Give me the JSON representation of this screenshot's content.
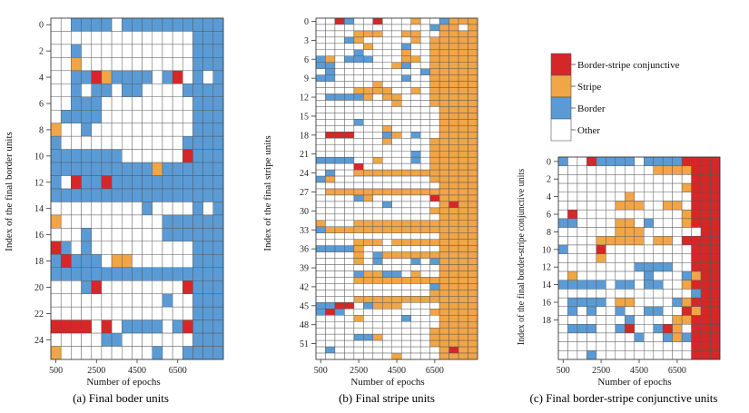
{
  "colors": {
    "conjunctive": "#d62728",
    "stripe": "#f0a547",
    "border": "#5a9bd5",
    "other": "#ffffff",
    "grid": "#555555"
  },
  "legend": {
    "items": [
      {
        "key": "conjunctive",
        "label": "Border-stripe conjunctive"
      },
      {
        "key": "stripe",
        "label": "Stripe"
      },
      {
        "key": "border",
        "label": "Border"
      },
      {
        "key": "other",
        "label": "Other"
      }
    ]
  },
  "chart_data": [
    {
      "type": "heatmap",
      "id": "a",
      "caption": "(a) Final boder units",
      "xlabel": "Number of epochs",
      "ylabel": "Index of the final border units",
      "x_ticks": [
        "500",
        "2500",
        "4500",
        "6500"
      ],
      "y_ticks": [
        "0",
        "2",
        "4",
        "6",
        "8",
        "10",
        "12",
        "14",
        "16",
        "18",
        "20",
        "22",
        "24"
      ],
      "legend_codes": {
        "0": "Other",
        "1": "Border",
        "2": "Stripe",
        "3": "Border-stripe conjunctive"
      },
      "rows": [
        "00111101111111111",
        "00000000000000111",
        "00100000000000111",
        "00200000000000111",
        "00113211110130101",
        "00101101100001111",
        "00111000000000111",
        "01111000000000111",
        "20010000000000111",
        "10000000000001111",
        "11111110000003111",
        "11111111112111111",
        "10311311111111111",
        "11111111111111111",
        "00000000010000101",
        "20000000000111111",
        "00010000000111111",
        "31010000000000111",
        "13111022000000111",
        "11111111111111111",
        "00013000000003111",
        "00000000000100111",
        "00000000000000111",
        "33330301111013111",
        "00000110000000111",
        "20000000001001111"
      ]
    },
    {
      "type": "heatmap",
      "id": "b",
      "caption": "(b) Final stripe units",
      "xlabel": "Number of epochs",
      "ylabel": "Index of the final  stripe units",
      "x_ticks": [
        "500",
        "2500",
        "4500",
        "6500"
      ],
      "y_ticks": [
        "0",
        "3",
        "6",
        "9",
        "12",
        "15",
        "18",
        "21",
        "24",
        "27",
        "30",
        "33",
        "36",
        "39",
        "42",
        "45",
        "48",
        "51"
      ],
      "legend_codes": {
        "0": "Other",
        "1": "Border",
        "2": "Stripe",
        "3": "Border-stripe conjunctive"
      },
      "rows": [
        "00310030002001222",
        "00000000000012202",
        "00002220022002222",
        "00012000002022222",
        "00000200010022222",
        "00001000020022222",
        "12011100022022222",
        "11000000210022222",
        "01000000000122222",
        "11000000010022222",
        "00000020000022222",
        "00002222002022222",
        "01111202200022222",
        "00000000200022222",
        "00000000000002222",
        "00000000000002222",
        "00001000000002222",
        "00000002000002222",
        "03330001201002222",
        "00000002000022222",
        "00000000000022222",
        "00000000001022222",
        "11110020001022222",
        "00003000000022222",
        "01002222222222222",
        "12000000000022222",
        "00000000000002222",
        "02222222222222222",
        "00001200000032222",
        "00000001000002322",
        "00000000000022222",
        "00000000000002222",
        "20002222222222222",
        "12222222222222222",
        "00000000000002222",
        "00002220222222222",
        "11112000000002222",
        "00002012222222222",
        "00002010001012222",
        "00000000000002222",
        "00001221102002222",
        "00002222222222222",
        "00000000000012222",
        "00000000000022222",
        "00002222222222222",
        "11330122200002222",
        "13100000000022222",
        "00002000010002222",
        "00000000000002222",
        "00000000000022222",
        "00001120000022222",
        "00000000000022222",
        "01000000000002322",
        "00000000200002222"
      ]
    },
    {
      "type": "heatmap",
      "id": "c",
      "caption": "(c) Final border-stripe conjunctive units",
      "xlabel": "Number of epochs",
      "ylabel": "Index of the final border-stripe conjunctive units",
      "x_ticks": [
        "500",
        "2500",
        "4500",
        "6500"
      ],
      "y_ticks": [
        "0",
        "2",
        "4",
        "6",
        "8",
        "10",
        "12",
        "14",
        "16",
        "18"
      ],
      "legend_codes": {
        "0": "Other",
        "1": "Border",
        "2": "Stripe",
        "3": "Border-stripe conjunctive"
      },
      "rows": [
        "10031111011113333",
        "00000000002222333",
        "00000000000000333",
        "00000000000002333",
        "00000002000000333",
        "00000022200220333",
        "03000000000002333",
        "11000022010002333",
        "00000022200000033",
        "00002222202203333",
        "10003000000000333",
        "00002000000000333",
        "00000000111100333",
        "02000000010001233",
        "11111011011002333",
        "00000000000000133",
        "01111022000012333",
        "01010010011003233",
        "00000001000022333",
        "01110013001320333",
        "00000000100121333",
        "00000000000000333",
        "00010000000000333"
      ]
    }
  ]
}
